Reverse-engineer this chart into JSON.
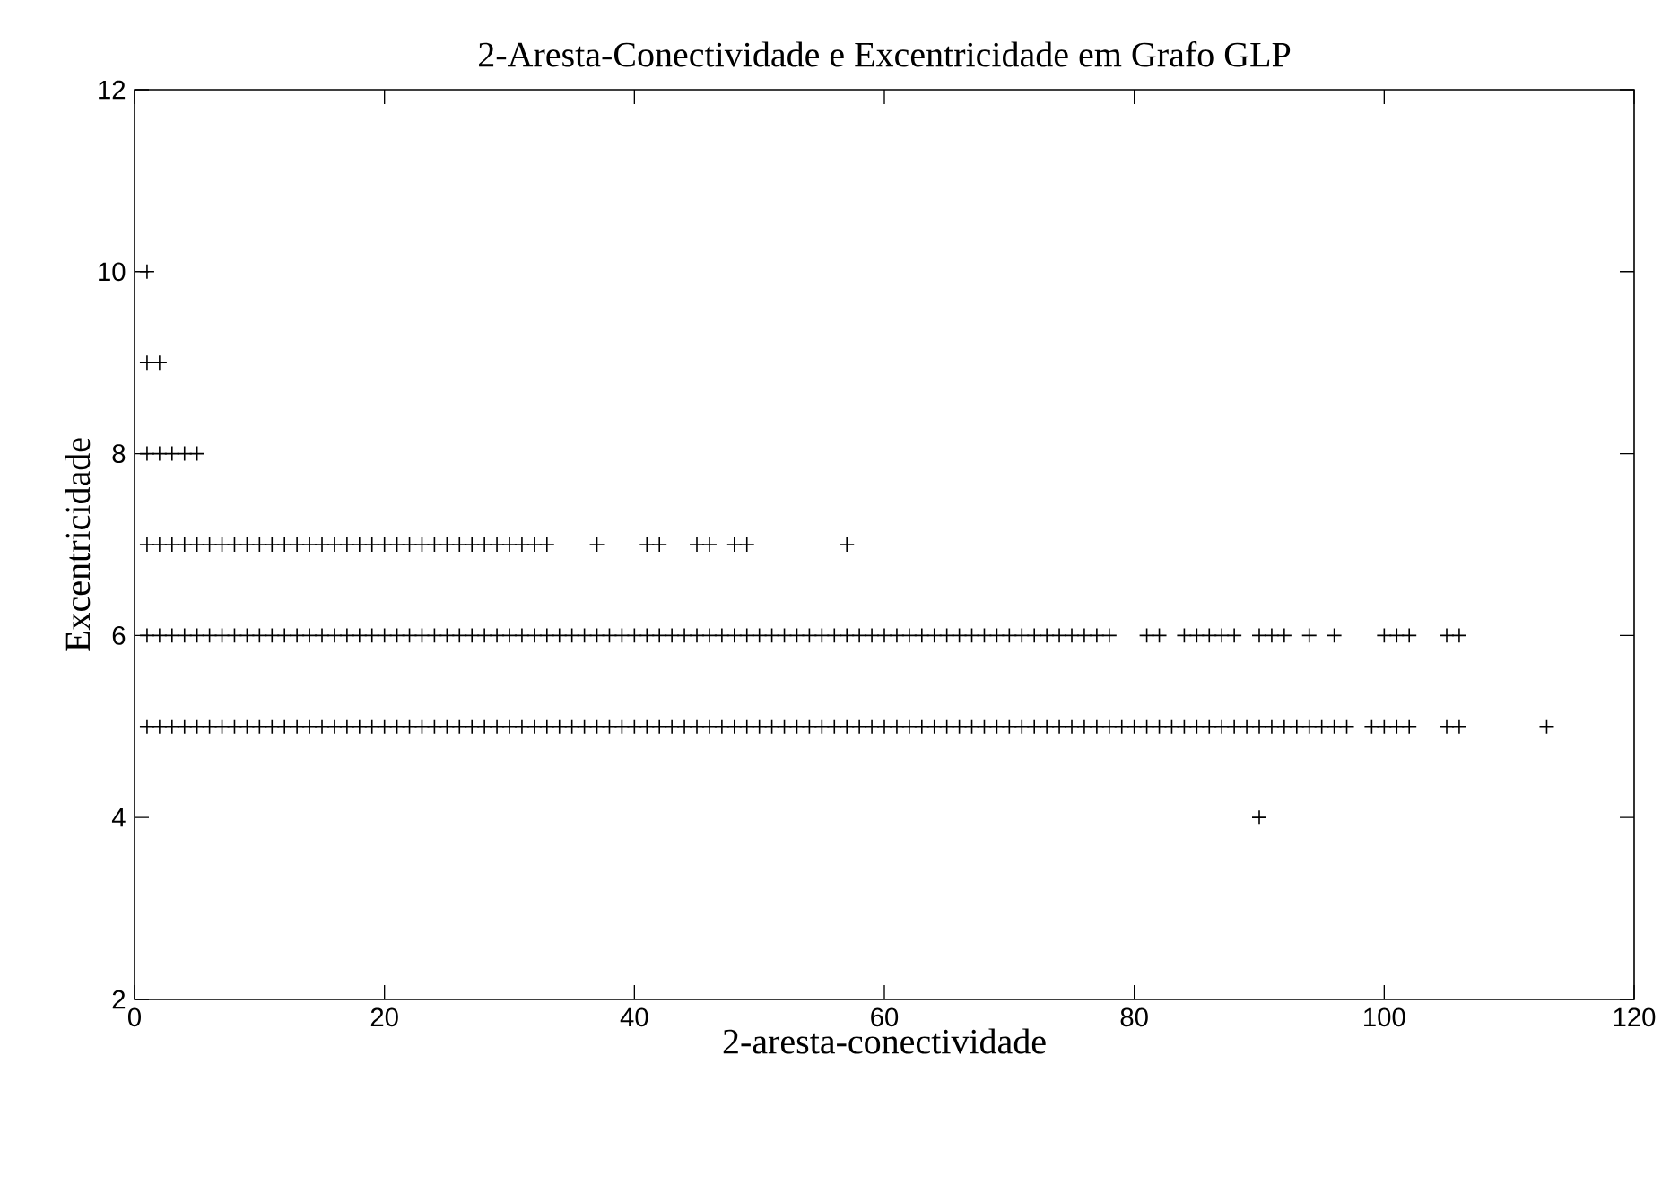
{
  "chart_data": {
    "type": "scatter",
    "title": "2-Aresta-Conectividade e Excentricidade em Grafo GLP",
    "xlabel": "2-aresta-conectividade",
    "ylabel": "Excentricidade",
    "series": [
      {
        "color": "#000000",
        "x": [
          1
        ],
        "values": [
          10
        ]
      },
      {
        "color": "#000000",
        "x": [
          1,
          2
        ],
        "values": [
          9,
          9
        ]
      },
      {
        "color": "#000000",
        "x": [
          1,
          2,
          3,
          4,
          5
        ],
        "values": [
          8,
          8,
          8,
          8,
          8
        ]
      },
      {
        "color": "#000000",
        "x": [
          1,
          2,
          3,
          4,
          5,
          6,
          7,
          8,
          9,
          10,
          11,
          12,
          13,
          14,
          15,
          16,
          17,
          18,
          19,
          20,
          21,
          22,
          23,
          24,
          25,
          26,
          27,
          28,
          29,
          30,
          31,
          32,
          33,
          37,
          41,
          42,
          45,
          46,
          48,
          49,
          57
        ],
        "values": [
          7,
          7,
          7,
          7,
          7,
          7,
          7,
          7,
          7,
          7,
          7,
          7,
          7,
          7,
          7,
          7,
          7,
          7,
          7,
          7,
          7,
          7,
          7,
          7,
          7,
          7,
          7,
          7,
          7,
          7,
          7,
          7,
          7,
          7,
          7,
          7,
          7,
          7,
          7,
          7,
          7
        ]
      },
      {
        "color": "#000000",
        "x": [
          1,
          2,
          3,
          4,
          5,
          6,
          7,
          8,
          9,
          10,
          11,
          12,
          13,
          14,
          15,
          16,
          17,
          18,
          19,
          20,
          21,
          22,
          23,
          24,
          25,
          26,
          27,
          28,
          29,
          30,
          31,
          32,
          33,
          34,
          35,
          36,
          37,
          38,
          39,
          40,
          41,
          42,
          43,
          44,
          45,
          46,
          47,
          48,
          49,
          50,
          51,
          52,
          53,
          54,
          55,
          56,
          57,
          58,
          59,
          60,
          61,
          62,
          63,
          64,
          65,
          66,
          67,
          68,
          69,
          70,
          71,
          72,
          73,
          74,
          75,
          76,
          77,
          78,
          81,
          82,
          84,
          85,
          86,
          87,
          88,
          90,
          91,
          92,
          94,
          96,
          100,
          101,
          102,
          105,
          106
        ],
        "values": [
          6,
          6,
          6,
          6,
          6,
          6,
          6,
          6,
          6,
          6,
          6,
          6,
          6,
          6,
          6,
          6,
          6,
          6,
          6,
          6,
          6,
          6,
          6,
          6,
          6,
          6,
          6,
          6,
          6,
          6,
          6,
          6,
          6,
          6,
          6,
          6,
          6,
          6,
          6,
          6,
          6,
          6,
          6,
          6,
          6,
          6,
          6,
          6,
          6,
          6,
          6,
          6,
          6,
          6,
          6,
          6,
          6,
          6,
          6,
          6,
          6,
          6,
          6,
          6,
          6,
          6,
          6,
          6,
          6,
          6,
          6,
          6,
          6,
          6,
          6,
          6,
          6,
          6,
          6,
          6,
          6,
          6,
          6,
          6,
          6,
          6,
          6,
          6,
          6,
          6,
          6,
          6,
          6,
          6,
          6
        ]
      },
      {
        "color": "#000000",
        "x": [
          1,
          2,
          3,
          4,
          5,
          6,
          7,
          8,
          9,
          10,
          11,
          12,
          13,
          14,
          15,
          16,
          17,
          18,
          19,
          20,
          21,
          22,
          23,
          24,
          25,
          26,
          27,
          28,
          29,
          30,
          31,
          32,
          33,
          34,
          35,
          36,
          37,
          38,
          39,
          40,
          41,
          42,
          43,
          44,
          45,
          46,
          47,
          48,
          49,
          50,
          51,
          52,
          53,
          54,
          55,
          56,
          57,
          58,
          59,
          60,
          61,
          62,
          63,
          64,
          65,
          66,
          67,
          68,
          69,
          70,
          71,
          72,
          73,
          74,
          75,
          76,
          77,
          78,
          79,
          80,
          81,
          82,
          83,
          84,
          85,
          86,
          87,
          88,
          89,
          90,
          91,
          92,
          93,
          94,
          95,
          96,
          97,
          99,
          100,
          101,
          102,
          105,
          106,
          113
        ],
        "values": [
          5,
          5,
          5,
          5,
          5,
          5,
          5,
          5,
          5,
          5,
          5,
          5,
          5,
          5,
          5,
          5,
          5,
          5,
          5,
          5,
          5,
          5,
          5,
          5,
          5,
          5,
          5,
          5,
          5,
          5,
          5,
          5,
          5,
          5,
          5,
          5,
          5,
          5,
          5,
          5,
          5,
          5,
          5,
          5,
          5,
          5,
          5,
          5,
          5,
          5,
          5,
          5,
          5,
          5,
          5,
          5,
          5,
          5,
          5,
          5,
          5,
          5,
          5,
          5,
          5,
          5,
          5,
          5,
          5,
          5,
          5,
          5,
          5,
          5,
          5,
          5,
          5,
          5,
          5,
          5,
          5,
          5,
          5,
          5,
          5,
          5,
          5,
          5,
          5,
          5,
          5,
          5,
          5,
          5,
          5,
          5,
          5,
          5,
          5,
          5,
          5,
          5,
          5,
          5
        ]
      },
      {
        "color": "#000000",
        "x": [
          90
        ],
        "values": [
          4
        ]
      }
    ],
    "marker": "cross",
    "xlim": [
      0,
      120
    ],
    "ylim": [
      2,
      12
    ],
    "xticks": [
      0,
      20,
      40,
      60,
      80,
      100,
      120
    ],
    "yticks": [
      2,
      4,
      6,
      8,
      10,
      12
    ]
  }
}
